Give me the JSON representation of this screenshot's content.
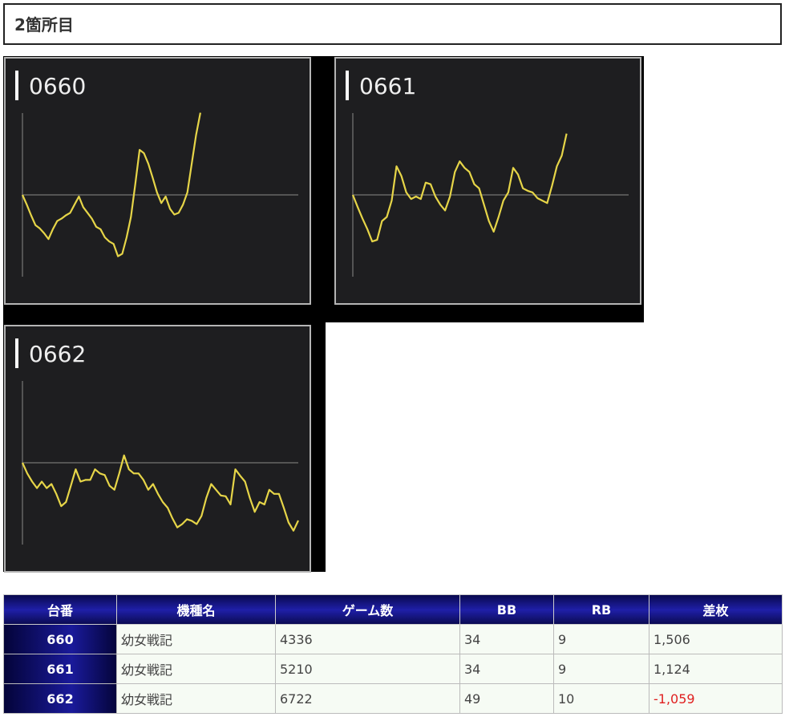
{
  "header": {
    "title": "2箇所目"
  },
  "chart_data": [
    {
      "type": "line",
      "title": "0660",
      "color": "#e6d548",
      "ylim": [
        -1500,
        1500
      ],
      "values": [
        0,
        -180,
        -375,
        -555,
        -615,
        -705,
        -810,
        -630,
        -480,
        -435,
        -375,
        -330,
        -180,
        -30,
        -225,
        -330,
        -435,
        -585,
        -630,
        -780,
        -855,
        -900,
        -1125,
        -1080,
        -780,
        -405,
        195,
        825,
        765,
        570,
        315,
        45,
        -150,
        -30,
        -255,
        -360,
        -330,
        -180,
        45,
        570,
        1095,
        1506
      ]
    },
    {
      "type": "line",
      "title": "0661",
      "color": "#e6d548",
      "ylim": [
        -1500,
        1500
      ],
      "values": [
        0,
        -225,
        -435,
        -630,
        -855,
        -825,
        -480,
        -405,
        -105,
        525,
        345,
        45,
        -75,
        -30,
        -75,
        225,
        195,
        -30,
        -180,
        -285,
        -30,
        420,
        615,
        495,
        420,
        195,
        120,
        -180,
        -480,
        -675,
        -405,
        -105,
        45,
        495,
        375,
        120,
        75,
        45,
        -60,
        -105,
        -150,
        165,
        525,
        720,
        1124
      ]
    },
    {
      "type": "line",
      "title": "0662",
      "color": "#e6d548",
      "ylim": [
        -1500,
        1500
      ],
      "values": [
        0,
        -195,
        -345,
        -465,
        -345,
        -465,
        -390,
        -570,
        -795,
        -720,
        -420,
        -120,
        -345,
        -315,
        -315,
        -120,
        -195,
        -225,
        -420,
        -495,
        -195,
        135,
        -120,
        -195,
        -195,
        -315,
        -495,
        -390,
        -570,
        -720,
        -825,
        -1020,
        -1185,
        -1125,
        -1035,
        -1065,
        -1125,
        -975,
        -645,
        -390,
        -495,
        -600,
        -615,
        -765,
        -120,
        -240,
        -345,
        -645,
        -900,
        -720,
        -765,
        -495,
        -570,
        -570,
        -825,
        -1095,
        -1245,
        -1059
      ]
    }
  ],
  "table": {
    "columns": [
      "台番",
      "機種名",
      "ゲーム数",
      "BB",
      "RB",
      "差枚"
    ],
    "rows": [
      [
        "660",
        "幼女戦記",
        "4336",
        "34",
        "9",
        "1,506"
      ],
      [
        "661",
        "幼女戦記",
        "5210",
        "34",
        "9",
        "1,124"
      ],
      [
        "662",
        "幼女戦記",
        "6722",
        "49",
        "10",
        "-1,059"
      ]
    ]
  }
}
